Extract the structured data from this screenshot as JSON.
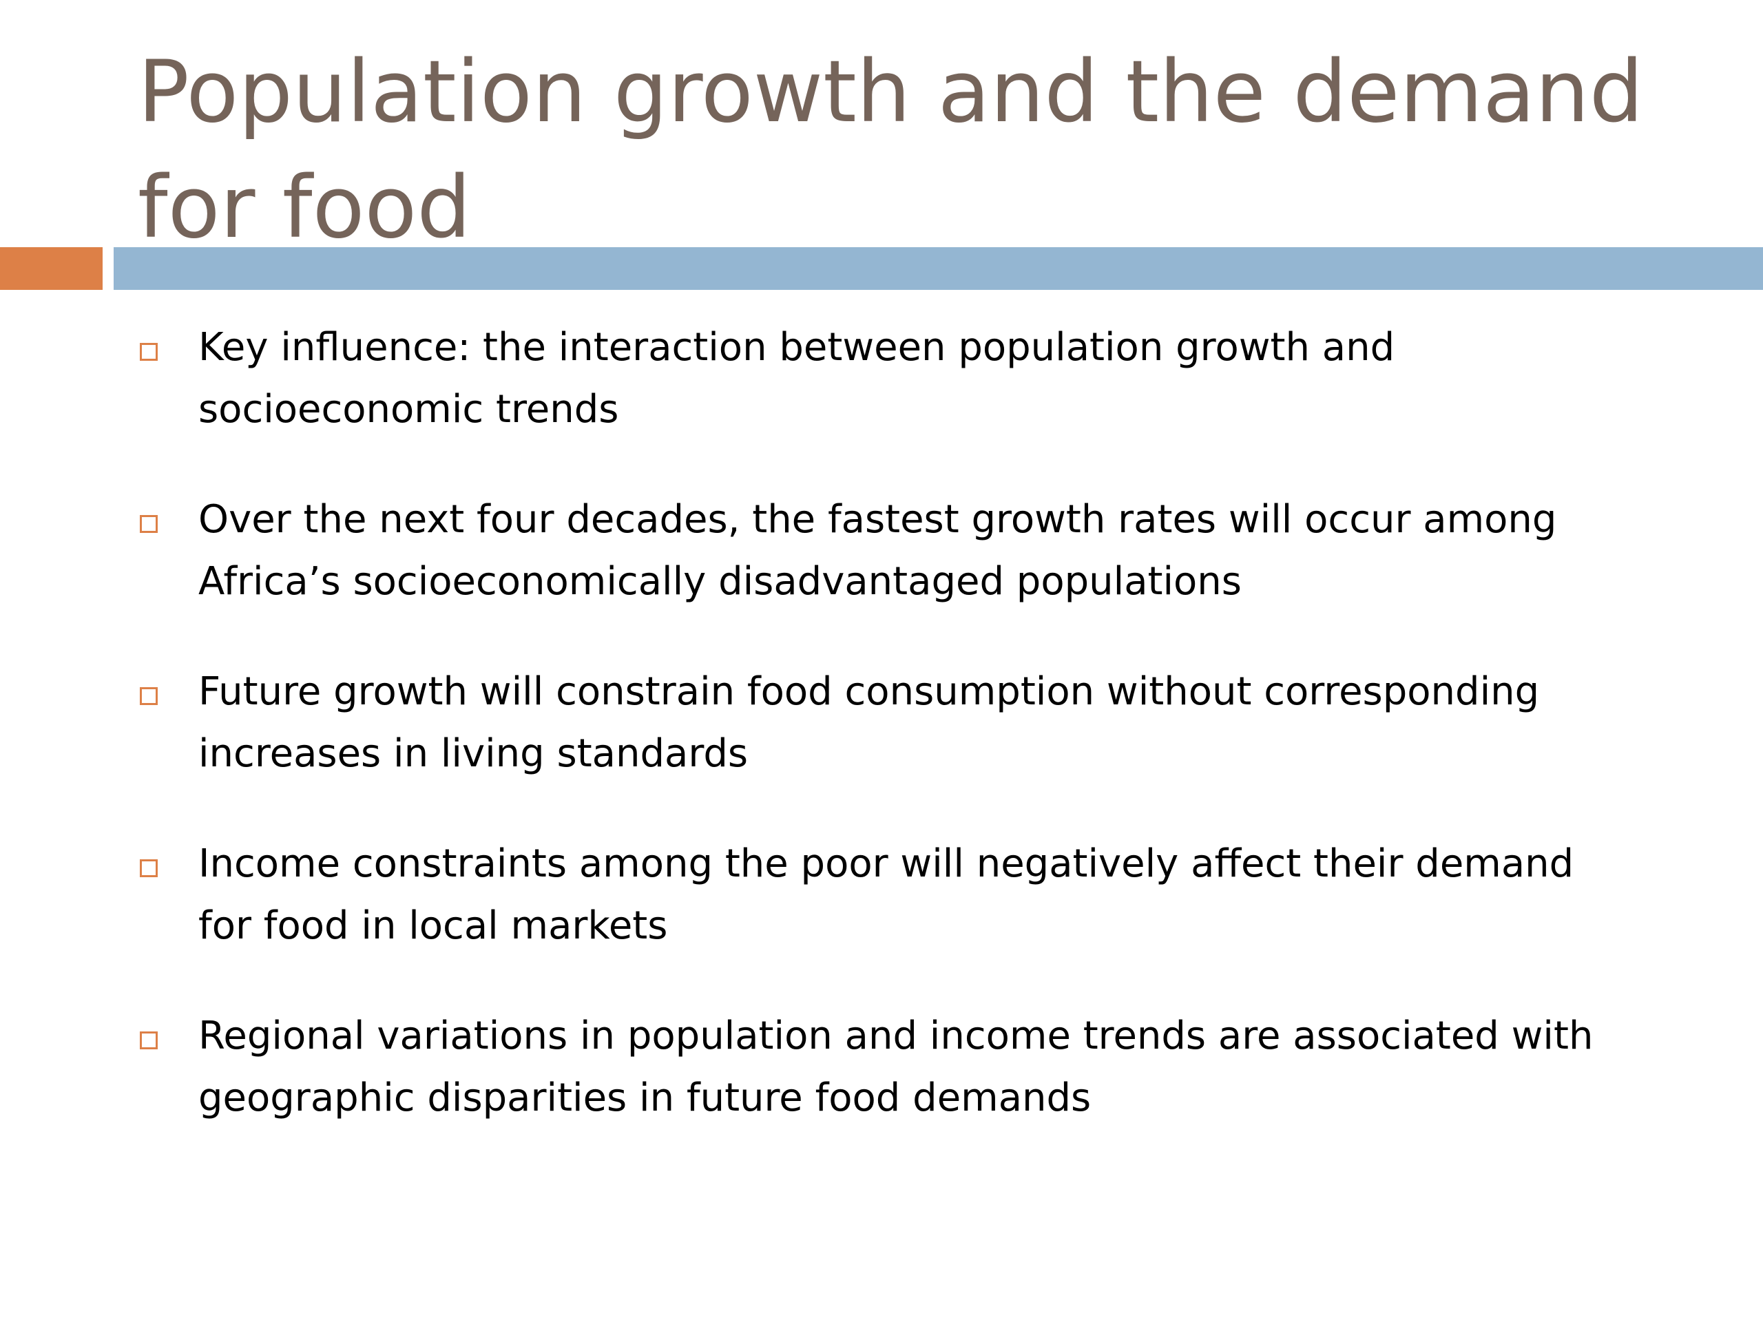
{
  "slide": {
    "title": "Population growth and the demand for food",
    "colors": {
      "title": "#75645a",
      "accent_orange": "#dd8047",
      "accent_blue": "#94b6d2",
      "bullet_marker": "#dd8047"
    },
    "bullet_icon": "hollow-square-icon",
    "bullets": [
      {
        "line1": "Key influence: the interaction between population growth and",
        "line2": "socioeconomic trends"
      },
      {
        "line1": "Over the next four decades, the fastest growth rates will occur among",
        "line2": "Africa’s socioeconomically disadvantaged populations"
      },
      {
        "line1": "Future growth will constrain food consumption without corresponding",
        "line2": "increases in living standards"
      },
      {
        "line1": "Income constraints among the poor will negatively affect their demand",
        "line2": "for food in local markets"
      },
      {
        "line1": "Regional variations in population and income trends are associated with",
        "line2": "geographic disparities in future food demands"
      }
    ]
  }
}
